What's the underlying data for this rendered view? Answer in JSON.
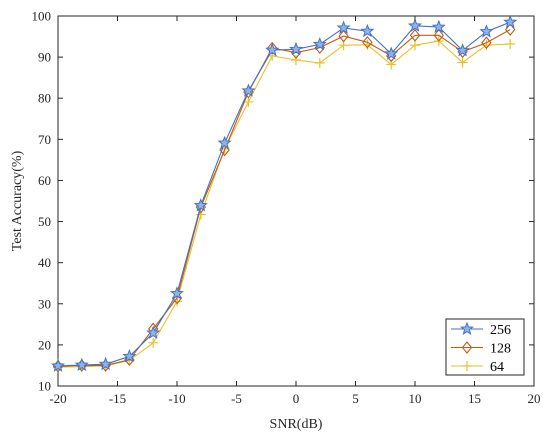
{
  "chart_data": {
    "type": "line",
    "title": "",
    "xlabel": "SNR(dB)",
    "ylabel": "Test Accuracy(%)",
    "xlim": [
      -20,
      20
    ],
    "ylim": [
      10,
      100
    ],
    "xticks": [
      "-20",
      "-15",
      "-10",
      "-5",
      "0",
      "5",
      "10",
      "15",
      "20"
    ],
    "yticks": [
      "10",
      "20",
      "30",
      "40",
      "50",
      "60",
      "70",
      "80",
      "90",
      "100"
    ],
    "grid": false,
    "legend_position": "bottom-right",
    "x": [
      -20,
      -18,
      -16,
      -14,
      -12,
      -10,
      -8,
      -6,
      -4,
      -2,
      0,
      2,
      4,
      6,
      8,
      10,
      12,
      14,
      16,
      18
    ],
    "series": [
      {
        "name": "256",
        "color": "#4472c4",
        "marker": "star",
        "values": [
          14.9,
          15.1,
          15.3,
          17.2,
          22.9,
          32.5,
          53.9,
          69.1,
          81.8,
          91.7,
          91.9,
          93.1,
          97.1,
          96.3,
          90.8,
          97.6,
          97.3,
          91.6,
          96.2,
          98.5
        ]
      },
      {
        "name": "128",
        "color": "#c55a11",
        "marker": "diamond",
        "values": [
          14.8,
          15.0,
          15.0,
          16.4,
          23.9,
          31.4,
          53.5,
          67.4,
          81.5,
          92.2,
          91.1,
          92.3,
          95.1,
          93.6,
          90.3,
          95.3,
          95.3,
          91.3,
          93.5,
          96.7
        ]
      },
      {
        "name": "64",
        "color": "#e6c229",
        "marker": "plus",
        "values": [
          14.6,
          14.7,
          14.9,
          16.2,
          20.5,
          30.6,
          51.7,
          67.7,
          79.1,
          90.3,
          89.3,
          88.6,
          92.9,
          93.0,
          88.2,
          92.9,
          93.9,
          88.7,
          92.9,
          93.2
        ]
      }
    ]
  }
}
